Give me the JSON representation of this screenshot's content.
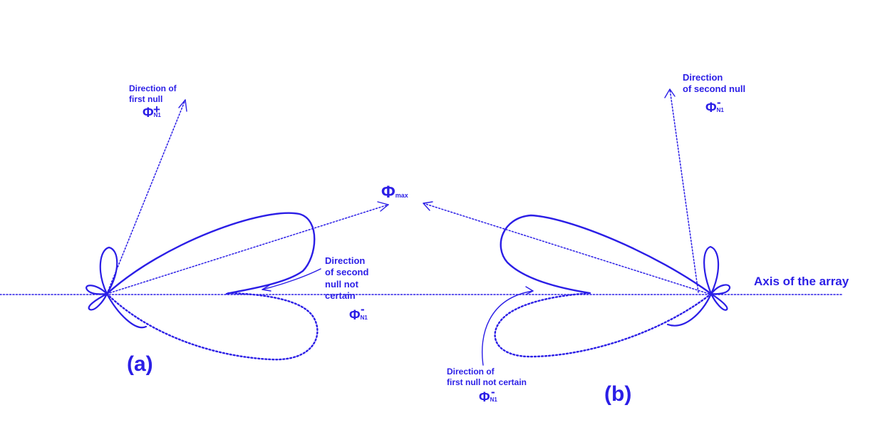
{
  "colors": {
    "ink": "#2b1ee6"
  },
  "labels": {
    "a_first_null": [
      "Direction of",
      "first null"
    ],
    "a_first_null_symbol": {
      "base": "Φ",
      "sup": "+",
      "sub": "N1"
    },
    "phi_max": {
      "base": "Φ",
      "sub": "max"
    },
    "a_second_null": [
      "Direction",
      "of second",
      "null not",
      "certain"
    ],
    "a_second_null_symbol": {
      "base": "Φ",
      "sup": "-",
      "sub": "N1"
    },
    "b_second_null": [
      "Direction",
      "of second null"
    ],
    "b_second_null_symbol": {
      "base": "Φ",
      "sup": "-",
      "sub": "N1"
    },
    "b_first_null": [
      "Direction of",
      "first null not certain"
    ],
    "b_first_null_symbol": {
      "base": "Φ",
      "sup": "-",
      "sub": "N1"
    },
    "axis": "Axis of the array",
    "panel_a": "(a)",
    "panel_b": "(b)"
  }
}
